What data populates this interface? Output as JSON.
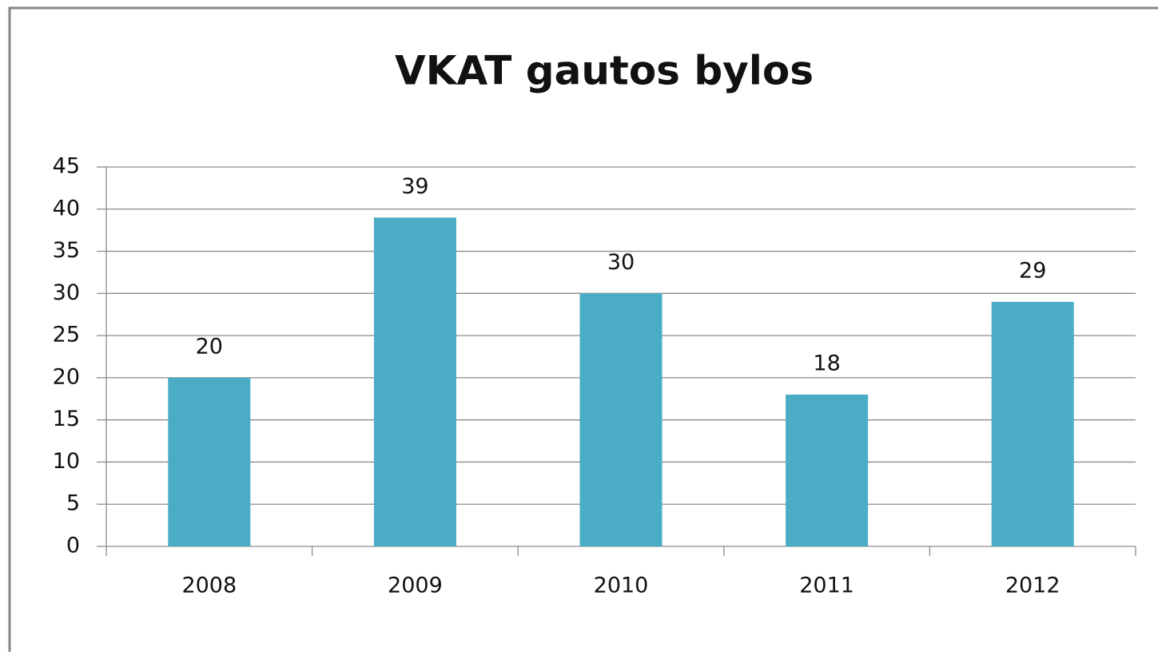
{
  "chart_data": {
    "type": "bar",
    "title": "VKAT gautos bylos",
    "categories": [
      "2008",
      "2009",
      "2010",
      "2011",
      "2012"
    ],
    "values": [
      20,
      39,
      30,
      18,
      29
    ],
    "color": "#4bacc6",
    "ylim": [
      0,
      45
    ],
    "yticks": [
      0,
      5,
      10,
      15,
      20,
      25,
      30,
      35,
      40,
      45
    ],
    "grid": true
  }
}
